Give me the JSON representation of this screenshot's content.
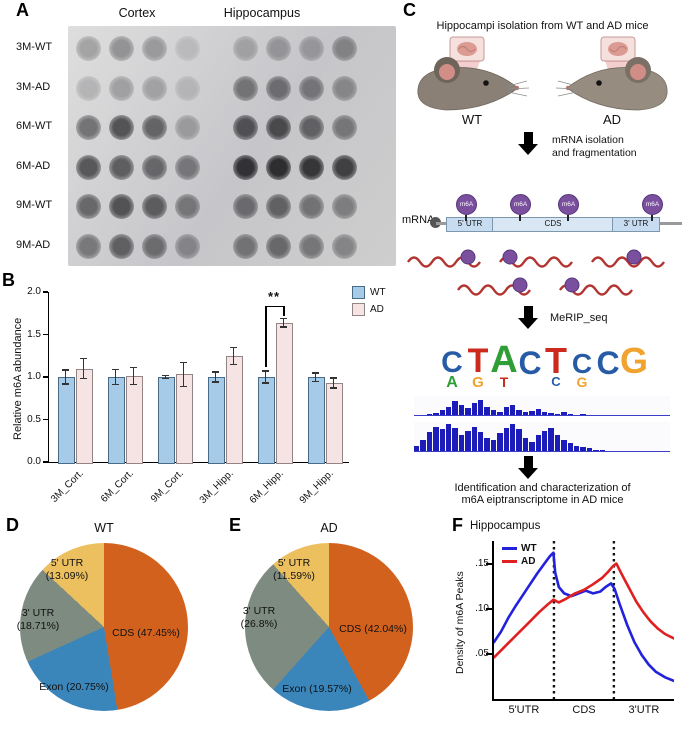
{
  "panel_labels": {
    "a": "A",
    "b": "B",
    "c": "C",
    "d": "D",
    "e": "E",
    "f": "F"
  },
  "panel_a": {
    "col_headers": [
      "Cortex",
      "Hippocampus"
    ],
    "rows": [
      {
        "label": "3M-WT",
        "dots": [
          0.3,
          0.38,
          0.33,
          0.14,
          0.26,
          0.32,
          0.3,
          0.42
        ]
      },
      {
        "label": "3M-AD",
        "dots": [
          0.2,
          0.3,
          0.28,
          0.16,
          0.52,
          0.55,
          0.5,
          0.4
        ]
      },
      {
        "label": "6M-WT",
        "dots": [
          0.55,
          0.72,
          0.62,
          0.3,
          0.72,
          0.76,
          0.62,
          0.5
        ]
      },
      {
        "label": "6M-AD",
        "dots": [
          0.7,
          0.66,
          0.6,
          0.5,
          0.9,
          0.93,
          0.88,
          0.82
        ]
      },
      {
        "label": "9M-WT",
        "dots": [
          0.6,
          0.72,
          0.66,
          0.5,
          0.56,
          0.62,
          0.52,
          0.46
        ]
      },
      {
        "label": "9M-AD",
        "dots": [
          0.5,
          0.64,
          0.56,
          0.4,
          0.52,
          0.58,
          0.5,
          0.42
        ]
      }
    ]
  },
  "panel_c": {
    "step1": "Hippocampi isolation from WT and AD mice",
    "mouse_left_label": "WT",
    "mouse_right_label": "AD",
    "step2_line1": "mRNA isolation",
    "step2_line2": "and fragmentation",
    "mrna_label": "mRNA",
    "m6a_label": "m6A",
    "segments": [
      "5' UTR",
      "CDS",
      "3' UTR"
    ],
    "merip_label": "MeRIP_seq",
    "logo": {
      "big": [
        {
          "ch": "C",
          "color": "#275ba6",
          "size": 30
        },
        {
          "ch": "T",
          "color": "#cc2a1d",
          "size": 34
        },
        {
          "ch": "A",
          "color": "#2f9e37",
          "size": 38
        },
        {
          "ch": "C",
          "color": "#275ba6",
          "size": 32
        },
        {
          "ch": "T",
          "color": "#cc2a1d",
          "size": 36
        },
        {
          "ch": "C",
          "color": "#275ba6",
          "size": 28
        },
        {
          "ch": "C",
          "color": "#275ba6",
          "size": 32
        },
        {
          "ch": "G",
          "color": "#f0a32f",
          "size": 36
        }
      ],
      "small": [
        {
          "ch": "A",
          "color": "#2f9e37",
          "size": 16
        },
        {
          "ch": "G",
          "color": "#f0a32f",
          "size": 15
        },
        {
          "ch": "T",
          "color": "#cc2a1d",
          "size": 14
        },
        {
          "ch": "",
          "color": "#000",
          "size": 0
        },
        {
          "ch": "C",
          "color": "#275ba6",
          "size": 13
        },
        {
          "ch": "G",
          "color": "#f0a32f",
          "size": 14
        },
        {
          "ch": "",
          "color": "#000",
          "size": 0
        },
        {
          "ch": "",
          "color": "#000",
          "size": 0
        }
      ]
    },
    "tracks": [
      {
        "heights": [
          0,
          0,
          0.05,
          0.1,
          0.3,
          0.5,
          0.8,
          0.6,
          0.4,
          0.7,
          0.9,
          0.5,
          0.3,
          0.2,
          0.45,
          0.6,
          0.3,
          0.15,
          0.25,
          0.35,
          0.2,
          0.1,
          0.05,
          0.15,
          0.08,
          0,
          0.05,
          0,
          0,
          0,
          0,
          0,
          0,
          0,
          0,
          0,
          0,
          0,
          0,
          0
        ]
      },
      {
        "heights": [
          0.2,
          0.4,
          0.7,
          0.9,
          0.8,
          1,
          0.85,
          0.6,
          0.75,
          0.9,
          0.7,
          0.5,
          0.4,
          0.65,
          0.85,
          1,
          0.8,
          0.5,
          0.35,
          0.6,
          0.75,
          0.85,
          0.6,
          0.4,
          0.3,
          0.2,
          0.15,
          0.1,
          0.05,
          0.05,
          0,
          0,
          0,
          0,
          0,
          0,
          0,
          0,
          0,
          0
        ]
      }
    ],
    "final_line1": "Identification and characterization of",
    "final_line2": "m6A eiptranscriptome in AD mice"
  },
  "chart_data": [
    {
      "id": "bar_m6a_abundance",
      "type": "bar",
      "categories": [
        "3M_Cort.",
        "6M_Cort.",
        "9M_Cort.",
        "3M_Hipp.",
        "6M_Hipp.",
        "9M_Hipp."
      ],
      "series": [
        {
          "name": "WT",
          "color": "#a6cbe8",
          "border": "#4a6b86",
          "values": [
            1.0,
            1.0,
            1.0,
            1.0,
            1.0,
            1.0
          ],
          "errors": [
            0.08,
            0.09,
            0.02,
            0.06,
            0.07,
            0.05
          ]
        },
        {
          "name": "AD",
          "color": "#f6e4e4",
          "border": "#938585",
          "values": [
            1.1,
            1.01,
            1.03,
            1.25,
            1.64,
            0.93
          ],
          "errors": [
            0.12,
            0.1,
            0.14,
            0.1,
            0.05,
            0.06
          ]
        }
      ],
      "ylabel": "Relative m6A abundance",
      "ylim": [
        0,
        2.0
      ],
      "yticks": [
        "0.0",
        "0.5",
        "1.0",
        "1.5",
        "2.0"
      ],
      "legend_position": "top-right",
      "significance": {
        "group": "6M_Hipp.",
        "label": "**",
        "bracket_y": 1.84,
        "left_leg_y": 1.12,
        "right_leg_y": 1.72
      }
    },
    {
      "id": "pie_wt",
      "type": "pie",
      "title": "WT",
      "labels": [
        "CDS",
        "Exon",
        "3' UTR",
        "5' UTR"
      ],
      "values": [
        47.45,
        20.75,
        18.71,
        13.09
      ],
      "colors": [
        "#d2611e",
        "#3a86ba",
        "#7e8b81",
        "#ecc05e"
      ],
      "slice_labels": [
        [
          "CDS (47.45%)"
        ],
        [
          "Exon (20.75%)"
        ],
        [
          "3' UTR",
          "(18.71%)"
        ],
        [
          "5' UTR",
          "(13.09%)"
        ]
      ]
    },
    {
      "id": "pie_ad",
      "type": "pie",
      "title": "AD",
      "labels": [
        "CDS",
        "Exon",
        "3' UTR",
        "5' UTR"
      ],
      "values": [
        42.04,
        19.57,
        26.8,
        11.59
      ],
      "colors": [
        "#d2611e",
        "#3a86ba",
        "#7e8b81",
        "#ecc05e"
      ],
      "slice_labels": [
        [
          "CDS (42.04%)"
        ],
        [
          "Exon (19.57%)"
        ],
        [
          "3' UTR",
          "(26.8%)"
        ],
        [
          "5' UTR",
          "(11.59%)"
        ]
      ]
    },
    {
      "id": "line_m6a_density",
      "type": "line",
      "title": "Hippocampus",
      "ylabel": "Density of m6A Peaks",
      "yticks": [
        ".05",
        ".10",
        ".15"
      ],
      "ytick_values": [
        0.05,
        0.1,
        0.15
      ],
      "ylim": [
        0,
        0.175
      ],
      "x_regions": [
        "5'UTR",
        "CDS",
        "3'UTR"
      ],
      "boundaries_pct": [
        33.3,
        66.6
      ],
      "legend_position": "top-left",
      "series": [
        {
          "name": "WT",
          "color": "#2222dd",
          "points": [
            [
              0,
              0.063
            ],
            [
              4,
              0.075
            ],
            [
              8,
              0.09
            ],
            [
              12,
              0.103
            ],
            [
              16,
              0.115
            ],
            [
              20,
              0.127
            ],
            [
              24,
              0.139
            ],
            [
              28,
              0.15
            ],
            [
              31,
              0.158
            ],
            [
              33,
              0.162
            ],
            [
              34,
              0.14
            ],
            [
              36,
              0.124
            ],
            [
              39,
              0.117
            ],
            [
              43,
              0.114
            ],
            [
              47,
              0.117
            ],
            [
              51,
              0.12
            ],
            [
              55,
              0.117
            ],
            [
              59,
              0.119
            ],
            [
              62,
              0.124
            ],
            [
              65,
              0.128
            ],
            [
              67,
              0.122
            ],
            [
              70,
              0.104
            ],
            [
              74,
              0.082
            ],
            [
              78,
              0.063
            ],
            [
              82,
              0.049
            ],
            [
              86,
              0.038
            ],
            [
              90,
              0.03
            ],
            [
              95,
              0.024
            ],
            [
              100,
              0.02
            ]
          ]
        },
        {
          "name": "AD",
          "color": "#e02020",
          "points": [
            [
              0,
              0.046
            ],
            [
              5,
              0.056
            ],
            [
              10,
              0.066
            ],
            [
              15,
              0.076
            ],
            [
              20,
              0.086
            ],
            [
              25,
              0.096
            ],
            [
              30,
              0.105
            ],
            [
              33,
              0.11
            ],
            [
              36,
              0.107
            ],
            [
              40,
              0.111
            ],
            [
              45,
              0.117
            ],
            [
              50,
              0.121
            ],
            [
              55,
              0.127
            ],
            [
              60,
              0.134
            ],
            [
              63,
              0.14
            ],
            [
              66,
              0.147
            ],
            [
              68,
              0.15
            ],
            [
              71,
              0.138
            ],
            [
              75,
              0.123
            ],
            [
              79,
              0.108
            ],
            [
              83,
              0.096
            ],
            [
              87,
              0.086
            ],
            [
              91,
              0.078
            ],
            [
              95,
              0.072
            ],
            [
              100,
              0.067
            ]
          ]
        }
      ]
    }
  ]
}
